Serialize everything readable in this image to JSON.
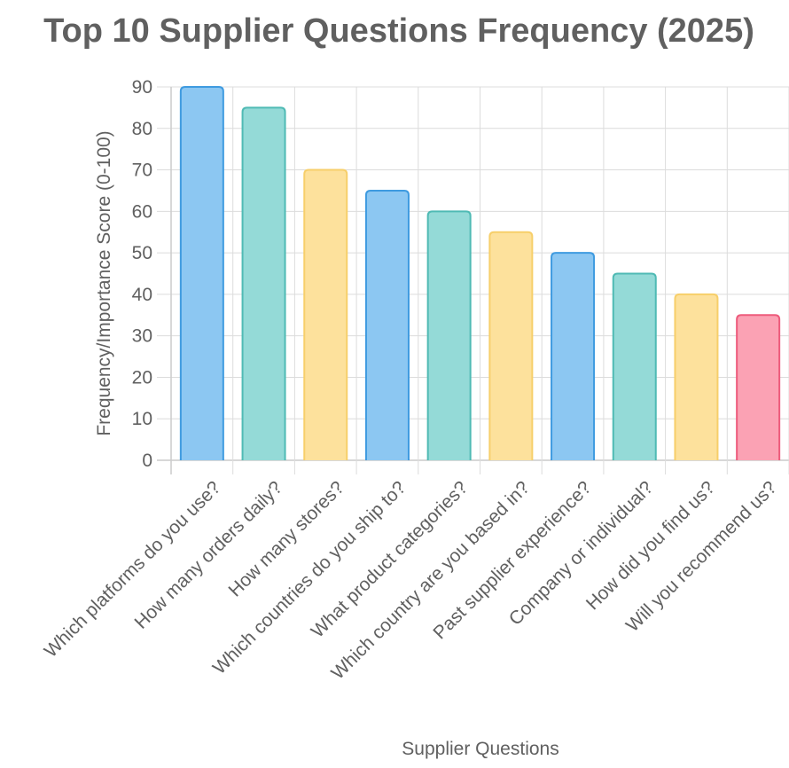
{
  "chart_data": {
    "type": "bar",
    "title": "Top 10 Supplier Questions Frequency (2025)",
    "xlabel": "Supplier Questions",
    "ylabel": "Frequency/Importance Score (0-100)",
    "ylim": [
      0,
      90
    ],
    "yticks": [
      0,
      10,
      20,
      30,
      40,
      50,
      60,
      70,
      80,
      90
    ],
    "grid": true,
    "legend": "none",
    "categories": [
      "Which platforms do you use?",
      "How many orders daily?",
      "How many stores?",
      "Which countries do you ship to?",
      "What product categories?",
      "Which country are you based in?",
      "Past supplier experience?",
      "Company or individual?",
      "How did you find us?",
      "Will you recommend us?"
    ],
    "values": [
      90,
      85,
      70,
      65,
      60,
      55,
      50,
      45,
      40,
      35
    ],
    "bar_fill_colors": [
      "#8cc7f2",
      "#94dad7",
      "#fde19c",
      "#8cc7f2",
      "#94dad7",
      "#fde19c",
      "#8cc7f2",
      "#94dad7",
      "#fde19c",
      "#fba2b4"
    ],
    "bar_border_colors": [
      "#3f9be0",
      "#4fbab4",
      "#f7cf6a",
      "#3f9be0",
      "#4fbab4",
      "#f7cf6a",
      "#3f9be0",
      "#4fbab4",
      "#f7cf6a",
      "#ed5b7c"
    ]
  }
}
